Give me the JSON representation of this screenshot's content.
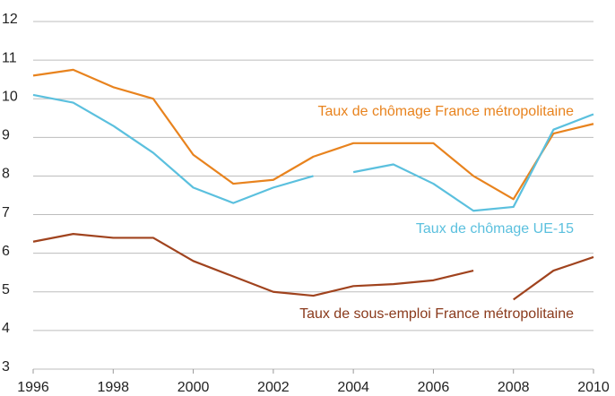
{
  "chart_data": {
    "type": "line",
    "xlim": [
      1996,
      2010
    ],
    "xticks": [
      1996,
      1998,
      2000,
      2002,
      2004,
      2006,
      2008,
      2010
    ],
    "ylim": [
      3,
      12
    ],
    "yticks": [
      3,
      4,
      5,
      6,
      7,
      8,
      9,
      10,
      11,
      12
    ],
    "grid": true,
    "series": [
      {
        "name": "Taux de chômage France métropolitaine",
        "color": "#e8831e",
        "x": [
          1996,
          1997,
          1998,
          1999,
          2000,
          2001,
          2002,
          2003,
          2004,
          2005,
          2006,
          2007,
          2008,
          2009,
          2010
        ],
        "values": [
          10.6,
          10.75,
          10.3,
          10.0,
          8.55,
          7.8,
          7.9,
          8.5,
          8.85,
          8.85,
          8.85,
          8.0,
          7.4,
          9.1,
          9.35
        ]
      },
      {
        "name": "Taux de chômage UE-15",
        "color": "#5bc0de",
        "x": [
          1996,
          1997,
          1998,
          1999,
          2000,
          2001,
          2002,
          2003,
          null,
          2004,
          2005,
          2006,
          2007,
          2008,
          2009,
          2010
        ],
        "values": [
          10.1,
          9.9,
          9.3,
          8.6,
          7.7,
          7.3,
          7.7,
          8.0,
          null,
          8.1,
          8.3,
          7.8,
          7.1,
          7.2,
          9.2,
          9.6
        ]
      },
      {
        "name": "Taux de sous-emploi France métropolitaine",
        "color": "#a0431e",
        "x": [
          1996,
          1997,
          1998,
          1999,
          2000,
          2001,
          2002,
          2003,
          2004,
          2005,
          2006,
          2007,
          null,
          2008,
          2009,
          2010
        ],
        "values": [
          6.3,
          6.5,
          6.4,
          6.4,
          5.8,
          5.4,
          5.0,
          4.9,
          5.15,
          5.2,
          5.3,
          5.55,
          null,
          4.8,
          5.55,
          5.9
        ]
      }
    ]
  }
}
